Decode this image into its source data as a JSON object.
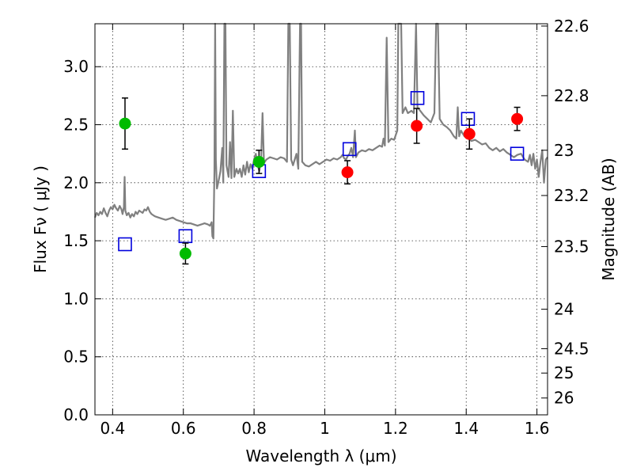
{
  "chart_data": {
    "type": "scatter",
    "title": "",
    "xlabel": "Wavelength  λ (μm)",
    "ylabel": "Flux  Fν  ( μJy )",
    "ylabel_right": "Magnitude (AB)",
    "xlim": [
      0.35,
      1.63
    ],
    "ylim": [
      0.0,
      3.37
    ],
    "grid": true,
    "x_ticks": [
      0.4,
      0.6,
      0.8,
      1.0,
      1.2,
      1.4,
      1.6
    ],
    "x_tick_labels": [
      "0.4",
      "0.6",
      "0.8",
      "1",
      "1.2",
      "1.4",
      "1.6"
    ],
    "y_ticks": [
      0.0,
      0.5,
      1.0,
      1.5,
      2.0,
      2.5,
      3.0
    ],
    "y_tick_labels": [
      "0.0",
      "0.5",
      "1.0",
      "1.5",
      "2.0",
      "2.5",
      "3.0"
    ],
    "right_ticks": [
      {
        "flux": 3.35,
        "label": "22.6"
      },
      {
        "flux": 2.75,
        "label": "22.8"
      },
      {
        "flux": 2.28,
        "label": "23"
      },
      {
        "flux": 1.89,
        "label": "23.2"
      },
      {
        "flux": 1.45,
        "label": "23.5"
      },
      {
        "flux": 0.91,
        "label": "24"
      },
      {
        "flux": 0.57,
        "label": "24.5"
      },
      {
        "flux": 0.36,
        "label": "25"
      },
      {
        "flux": 0.145,
        "label": "26"
      }
    ],
    "colors": {
      "spectrum": "#808080",
      "green": "#00bb00",
      "red": "#ff0000",
      "model_box": "#0000dd",
      "error": "#000000"
    },
    "series": [
      {
        "marker": "circle-green",
        "points": [
          {
            "x": 0.435,
            "y": 2.51,
            "yerr": 0.22
          },
          {
            "x": 0.606,
            "y": 1.39,
            "yerr": 0.09
          },
          {
            "x": 0.814,
            "y": 2.18,
            "yerr": 0.1
          }
        ]
      },
      {
        "marker": "circle-red",
        "points": [
          {
            "x": 1.064,
            "y": 2.09,
            "yerr": 0.1
          },
          {
            "x": 1.26,
            "y": 2.49,
            "yerr": 0.15
          },
          {
            "x": 1.409,
            "y": 2.42,
            "yerr": 0.13
          },
          {
            "x": 1.544,
            "y": 2.55,
            "yerr": 0.1
          }
        ]
      },
      {
        "marker": "square-open-blue",
        "points": [
          {
            "x": 0.435,
            "y": 1.47
          },
          {
            "x": 0.606,
            "y": 1.54
          },
          {
            "x": 0.814,
            "y": 2.1
          },
          {
            "x": 1.07,
            "y": 2.29
          },
          {
            "x": 1.262,
            "y": 2.73
          },
          {
            "x": 1.405,
            "y": 2.55
          },
          {
            "x": 1.544,
            "y": 2.25
          }
        ]
      },
      {
        "marker": "spectrum-line",
        "points": [
          [
            0.35,
            1.7
          ],
          [
            0.355,
            1.74
          ],
          [
            0.36,
            1.72
          ],
          [
            0.365,
            1.75
          ],
          [
            0.37,
            1.73
          ],
          [
            0.375,
            1.78
          ],
          [
            0.38,
            1.74
          ],
          [
            0.385,
            1.71
          ],
          [
            0.39,
            1.76
          ],
          [
            0.395,
            1.79
          ],
          [
            0.4,
            1.77
          ],
          [
            0.405,
            1.81
          ],
          [
            0.41,
            1.78
          ],
          [
            0.415,
            1.76
          ],
          [
            0.42,
            1.8
          ],
          [
            0.425,
            1.77
          ],
          [
            0.428,
            1.73
          ],
          [
            0.432,
            1.79
          ],
          [
            0.434,
            2.05
          ],
          [
            0.436,
            1.76
          ],
          [
            0.44,
            1.72
          ],
          [
            0.445,
            1.74
          ],
          [
            0.45,
            1.7
          ],
          [
            0.455,
            1.73
          ],
          [
            0.46,
            1.71
          ],
          [
            0.465,
            1.75
          ],
          [
            0.47,
            1.73
          ],
          [
            0.475,
            1.76
          ],
          [
            0.48,
            1.75
          ],
          [
            0.485,
            1.74
          ],
          [
            0.49,
            1.77
          ],
          [
            0.495,
            1.76
          ],
          [
            0.5,
            1.79
          ],
          [
            0.505,
            1.75
          ],
          [
            0.51,
            1.73
          ],
          [
            0.515,
            1.72
          ],
          [
            0.52,
            1.71
          ],
          [
            0.53,
            1.7
          ],
          [
            0.54,
            1.69
          ],
          [
            0.55,
            1.68
          ],
          [
            0.56,
            1.69
          ],
          [
            0.57,
            1.7
          ],
          [
            0.58,
            1.68
          ],
          [
            0.59,
            1.67
          ],
          [
            0.6,
            1.66
          ],
          [
            0.61,
            1.65
          ],
          [
            0.62,
            1.65
          ],
          [
            0.63,
            1.64
          ],
          [
            0.64,
            1.63
          ],
          [
            0.65,
            1.64
          ],
          [
            0.66,
            1.65
          ],
          [
            0.67,
            1.64
          ],
          [
            0.675,
            1.63
          ],
          [
            0.68,
            1.66
          ],
          [
            0.682,
            1.54
          ],
          [
            0.685,
            1.52
          ],
          [
            0.688,
            2.1
          ],
          [
            0.69,
            3.45
          ],
          [
            0.692,
            2.2
          ],
          [
            0.695,
            1.95
          ],
          [
            0.7,
            2.02
          ],
          [
            0.705,
            2.1
          ],
          [
            0.71,
            2.3
          ],
          [
            0.713,
            2.0
          ],
          [
            0.716,
            3.4
          ],
          [
            0.719,
            3.4
          ],
          [
            0.722,
            2.15
          ],
          [
            0.728,
            2.05
          ],
          [
            0.732,
            2.35
          ],
          [
            0.736,
            2.04
          ],
          [
            0.74,
            2.62
          ],
          [
            0.744,
            2.05
          ],
          [
            0.75,
            2.12
          ],
          [
            0.755,
            2.08
          ],
          [
            0.76,
            2.12
          ],
          [
            0.765,
            2.05
          ],
          [
            0.77,
            2.15
          ],
          [
            0.775,
            2.07
          ],
          [
            0.78,
            2.18
          ],
          [
            0.785,
            2.09
          ],
          [
            0.79,
            2.16
          ],
          [
            0.795,
            2.12
          ],
          [
            0.8,
            2.2
          ],
          [
            0.805,
            2.25
          ],
          [
            0.81,
            2.15
          ],
          [
            0.815,
            2.1
          ],
          [
            0.82,
            2.2
          ],
          [
            0.824,
            2.6
          ],
          [
            0.828,
            2.17
          ],
          [
            0.835,
            2.2
          ],
          [
            0.845,
            2.22
          ],
          [
            0.855,
            2.21
          ],
          [
            0.865,
            2.2
          ],
          [
            0.875,
            2.22
          ],
          [
            0.885,
            2.21
          ],
          [
            0.893,
            2.18
          ],
          [
            0.897,
            3.4
          ],
          [
            0.901,
            3.4
          ],
          [
            0.905,
            2.2
          ],
          [
            0.91,
            2.15
          ],
          [
            0.915,
            2.2
          ],
          [
            0.92,
            2.25
          ],
          [
            0.925,
            2.12
          ],
          [
            0.93,
            3.4
          ],
          [
            0.933,
            3.4
          ],
          [
            0.936,
            2.18
          ],
          [
            0.945,
            2.15
          ],
          [
            0.955,
            2.14
          ],
          [
            0.965,
            2.16
          ],
          [
            0.975,
            2.18
          ],
          [
            0.985,
            2.16
          ],
          [
            0.995,
            2.18
          ],
          [
            1.005,
            2.2
          ],
          [
            1.015,
            2.19
          ],
          [
            1.025,
            2.21
          ],
          [
            1.035,
            2.2
          ],
          [
            1.045,
            2.22
          ],
          [
            1.05,
            2.24
          ],
          [
            1.055,
            2.21
          ],
          [
            1.06,
            2.2
          ],
          [
            1.065,
            2.23
          ],
          [
            1.07,
            2.25
          ],
          [
            1.075,
            2.3
          ],
          [
            1.08,
            2.22
          ],
          [
            1.085,
            2.45
          ],
          [
            1.088,
            2.22
          ],
          [
            1.095,
            2.26
          ],
          [
            1.105,
            2.28
          ],
          [
            1.115,
            2.27
          ],
          [
            1.125,
            2.29
          ],
          [
            1.135,
            2.28
          ],
          [
            1.145,
            2.3
          ],
          [
            1.155,
            2.32
          ],
          [
            1.162,
            2.31
          ],
          [
            1.166,
            2.38
          ],
          [
            1.17,
            2.32
          ],
          [
            1.175,
            3.25
          ],
          [
            1.18,
            2.35
          ],
          [
            1.188,
            2.38
          ],
          [
            1.196,
            2.37
          ],
          [
            1.205,
            2.45
          ],
          [
            1.208,
            3.4
          ],
          [
            1.212,
            3.4
          ],
          [
            1.216,
            3.4
          ],
          [
            1.22,
            2.6
          ],
          [
            1.228,
            2.65
          ],
          [
            1.235,
            2.6
          ],
          [
            1.245,
            2.62
          ],
          [
            1.252,
            2.6
          ],
          [
            1.258,
            3.4
          ],
          [
            1.262,
            2.65
          ],
          [
            1.27,
            2.62
          ],
          [
            1.28,
            2.58
          ],
          [
            1.29,
            2.55
          ],
          [
            1.3,
            2.52
          ],
          [
            1.31,
            2.6
          ],
          [
            1.315,
            3.4
          ],
          [
            1.32,
            3.4
          ],
          [
            1.325,
            2.55
          ],
          [
            1.335,
            2.5
          ],
          [
            1.345,
            2.48
          ],
          [
            1.355,
            2.45
          ],
          [
            1.365,
            2.4
          ],
          [
            1.372,
            2.38
          ],
          [
            1.376,
            2.65
          ],
          [
            1.38,
            2.4
          ],
          [
            1.385,
            2.45
          ],
          [
            1.395,
            2.4
          ],
          [
            1.405,
            2.38
          ],
          [
            1.415,
            2.36
          ],
          [
            1.425,
            2.37
          ],
          [
            1.435,
            2.35
          ],
          [
            1.445,
            2.33
          ],
          [
            1.455,
            2.34
          ],
          [
            1.465,
            2.3
          ],
          [
            1.475,
            2.28
          ],
          [
            1.485,
            2.3
          ],
          [
            1.495,
            2.27
          ],
          [
            1.505,
            2.29
          ],
          [
            1.515,
            2.26
          ],
          [
            1.525,
            2.24
          ],
          [
            1.535,
            2.22
          ],
          [
            1.545,
            2.24
          ],
          [
            1.555,
            2.25
          ],
          [
            1.565,
            2.2
          ],
          [
            1.575,
            2.18
          ],
          [
            1.58,
            2.24
          ],
          [
            1.585,
            2.15
          ],
          [
            1.59,
            2.25
          ],
          [
            1.595,
            2.12
          ],
          [
            1.6,
            2.2
          ],
          [
            1.605,
            2.05
          ],
          [
            1.61,
            2.18
          ],
          [
            1.615,
            2.28
          ],
          [
            1.62,
            2.0
          ],
          [
            1.625,
            2.2
          ],
          [
            1.63,
            2.22
          ]
        ]
      }
    ]
  }
}
